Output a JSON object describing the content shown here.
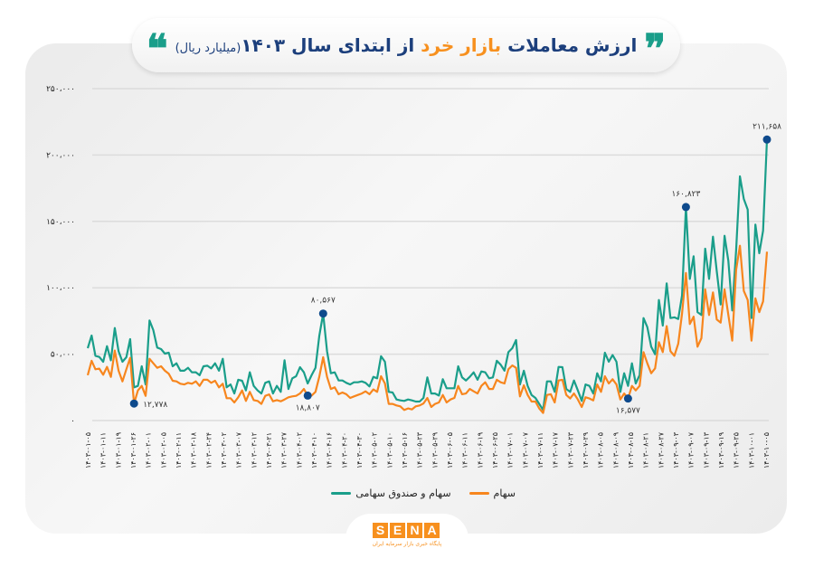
{
  "title": {
    "part1": "ارزش معاملات",
    "accent": "بازار خرد",
    "part2": "از ابتدای سال ۱۴۰۳",
    "unit": "(میلیارد ریال)",
    "quote_open": "❝",
    "quote_close": "❞"
  },
  "colors": {
    "series_total": "#1a9e8a",
    "series_stocks": "#f7861e",
    "marker": "#0e4a8c",
    "title": "#1c3f7c",
    "accent": "#f7901e"
  },
  "legend": [
    {
      "label": "سهام",
      "color": "#f7861e"
    },
    {
      "label": "سهام و صندوق سهامی",
      "color": "#1a9e8a"
    }
  ],
  "logo": {
    "letters": [
      "S",
      "E",
      "N",
      "A"
    ],
    "subtitle": "پایگاه خبری بازار سرمایه ایران"
  },
  "chart_data": {
    "type": "line",
    "title": "ارزش معاملات بازار خرد از ابتدای سال ۱۴۰۳ (میلیارد ریال)",
    "ylim": [
      0,
      250000
    ],
    "grid": true,
    "legend_position": "bottom",
    "y_ticks": [
      0,
      50000,
      100000,
      150000,
      200000,
      250000
    ],
    "y_tick_labels": [
      "۰",
      "۵۰،۰۰۰",
      "۱۰۰،۰۰۰",
      "۱۵۰،۰۰۰",
      "۲۰۰،۰۰۰",
      "۲۵۰،۰۰۰"
    ],
    "x_tick_labels": [
      "۱۴۰۳-۰۱-۰۵",
      "۱۴۰۳-۰۱-۱۱",
      "۱۴۰۳-۰۱-۱۹",
      "۱۴۰۳-۰۱-۲۶",
      "۱۴۰۳-۰۲-۰۱",
      "۱۴۰۳-۰۲-۰۵",
      "۱۴۰۳-۰۲-۱۱",
      "۱۴۰۳-۰۲-۱۸",
      "۱۴۰۳-۰۲-۲۴",
      "۱۴۰۳-۰۳-۰۲",
      "۱۴۰۳-۰۳-۰۷",
      "۱۴۰۳-۰۳-۱۲",
      "۱۴۰۳-۰۳-۲۱",
      "۱۴۰۳-۰۳-۲۷",
      "۱۴۰۳-۰۴-۰۲",
      "۱۴۰۳-۰۴-۱۰",
      "۱۴۰۳-۰۴-۱۶",
      "۱۴۰۳-۰۴-۲۰",
      "۱۴۰۳-۰۴-۳۰",
      "۱۴۰۳-۰۵-۰۲",
      "۱۴۰۳-۰۵-۱۰",
      "۱۴۰۳-۰۵-۱۶",
      "۱۴۰۳-۰۵-۲۳",
      "۱۴۰۳-۰۵-۲۹",
      "۱۴۰۳-۰۶-۰۵",
      "۱۴۰۳-۰۶-۱۱",
      "۱۴۰۳-۰۶-۱۹",
      "۱۴۰۳-۰۶-۲۵",
      "۱۴۰۳-۰۷-۰۱",
      "۱۴۰۳-۰۷-۰۷",
      "۱۴۰۳-۰۷-۱۱",
      "۱۴۰۳-۰۷-۱۷",
      "۱۴۰۳-۰۷-۲۳",
      "۱۴۰۳-۰۷-۲۹",
      "۱۴۰۳-۰۸-۰۵",
      "۱۴۰۳-۰۸-۰۹",
      "۱۴۰۳-۰۸-۱۵",
      "۱۴۰۳-۰۸-۲۱",
      "۱۴۰۳-۰۸-۲۷",
      "۱۴۰۳-۰۹-۰۳",
      "۱۴۰۳-۰۹-۰۷",
      "۱۴۰۳-۰۹-۱۳",
      "۱۴۰۳-۰۹-۱۹",
      "۱۴۰۳-۰۹-۲۵",
      "۱۴۰۳-۱۰-۰۱",
      "۱۴۰۳-۱۰-۰۵"
    ],
    "series": [
      {
        "name": "سهام و صندوق سهامی",
        "color": "#1a9e8a",
        "values": [
          54500,
          64000,
          48800,
          47900,
          44300,
          56000,
          45400,
          69700,
          52200,
          44300,
          47700,
          61300,
          25000,
          26100,
          40900,
          27200,
          75400,
          68100,
          55000,
          53800,
          50400,
          51100,
          40900,
          43100,
          37500,
          37500,
          39700,
          36300,
          36400,
          34100,
          40900,
          41300,
          39300,
          43100,
          37500,
          46500,
          25000,
          27200,
          20400,
          30700,
          30000,
          22700,
          36400,
          26100,
          22700,
          20400,
          28400,
          29500,
          20400,
          26100,
          21600,
          45400,
          23800,
          31800,
          33400,
          40200,
          36300,
          27900,
          34100,
          39700,
          63600,
          80567,
          52200,
          35600,
          36300,
          30200,
          30200,
          28400,
          27200,
          28800,
          28800,
          29500,
          28400,
          25700,
          32900,
          31800,
          48400,
          44300,
          21600,
          21100,
          15900,
          15200,
          14800,
          15900,
          15200,
          14300,
          14300,
          17000,
          32500,
          20400,
          20400,
          18800,
          31100,
          24300,
          24300,
          24300,
          40900,
          32500,
          30200,
          32900,
          36300,
          30700,
          37000,
          36300,
          31800,
          32500,
          45000,
          42000,
          37500,
          51500,
          54500,
          60600,
          27200,
          37500,
          26100,
          19300,
          17000,
          12500,
          8000,
          29500,
          29500,
          21600,
          40400,
          40200,
          23800,
          21600,
          30200,
          22700,
          14800,
          27200,
          26100,
          20400,
          35600,
          29500,
          51100,
          44300,
          49300,
          44300,
          21600,
          35600,
          26100,
          43100,
          27900,
          34100,
          77200,
          70400,
          55600,
          49900,
          90800,
          71500,
          103300,
          77200,
          77700,
          76500,
          94200,
          160823,
          106700,
          123800,
          81700,
          79500,
          129400,
          106700,
          138500,
          112400,
          87400,
          139200,
          120300,
          82900,
          128300,
          183900,
          166900,
          158900,
          77200,
          147600,
          126000,
          143000,
          211658
        ]
      },
      {
        "name": "سهام",
        "color": "#f7861e",
        "values": [
          34100,
          45000,
          38600,
          39100,
          34500,
          40400,
          32900,
          52700,
          37500,
          29500,
          38600,
          47200,
          12778,
          22700,
          26100,
          18600,
          46500,
          43100,
          39700,
          40900,
          37500,
          35200,
          30000,
          29500,
          27700,
          27200,
          28400,
          27700,
          29500,
          26100,
          30700,
          30700,
          28400,
          30000,
          25000,
          27700,
          16800,
          16800,
          13600,
          17500,
          22700,
          14800,
          21600,
          15400,
          14800,
          12500,
          18600,
          19700,
          14500,
          15400,
          14500,
          15900,
          17500,
          18200,
          18600,
          20400,
          23800,
          18807,
          18800,
          21600,
          32900,
          47700,
          32900,
          23800,
          25000,
          19800,
          21100,
          19800,
          17000,
          18200,
          19300,
          20400,
          22000,
          19800,
          23400,
          21600,
          33400,
          27900,
          12500,
          12500,
          11400,
          10700,
          8000,
          9100,
          8400,
          10700,
          11400,
          12900,
          17000,
          10200,
          12500,
          13600,
          19300,
          13600,
          15900,
          17000,
          26100,
          19800,
          20400,
          23800,
          22000,
          20400,
          26100,
          28800,
          23800,
          23800,
          30700,
          28800,
          27900,
          38600,
          41500,
          39700,
          18200,
          26600,
          19300,
          14300,
          14300,
          9100,
          5700,
          19300,
          19800,
          13600,
          30200,
          30700,
          19300,
          16600,
          20400,
          15900,
          10200,
          17500,
          16600,
          15200,
          27200,
          21600,
          33400,
          27900,
          31100,
          27200,
          15900,
          20400,
          16577,
          26100,
          22700,
          26100,
          51500,
          43100,
          35600,
          39300,
          59000,
          51500,
          71100,
          52200,
          48800,
          57900,
          80600,
          111200,
          72700,
          78300,
          55600,
          62000,
          98800,
          79500,
          96500,
          76100,
          73800,
          98800,
          79500,
          60200,
          113500,
          131700,
          97600,
          90800,
          60200,
          92000,
          81700,
          89700,
          127200
        ]
      }
    ],
    "annotations": [
      {
        "series": 1,
        "index": 12,
        "label": "۱۲,۷۷۸",
        "position": "right"
      },
      {
        "series": 1,
        "index": 57,
        "label": "۱۸,۸۰۷",
        "position": "below"
      },
      {
        "series": 0,
        "index": 61,
        "label": "۸۰,۵۶۷",
        "position": "above"
      },
      {
        "series": 1,
        "index": 140,
        "label": "۱۶,۵۷۷",
        "position": "below"
      },
      {
        "series": 0,
        "index": 155,
        "label": "۱۶۰,۸۲۳",
        "position": "above"
      },
      {
        "series": 0,
        "index": 176,
        "label": "۲۱۱,۶۵۸",
        "position": "above"
      }
    ]
  }
}
